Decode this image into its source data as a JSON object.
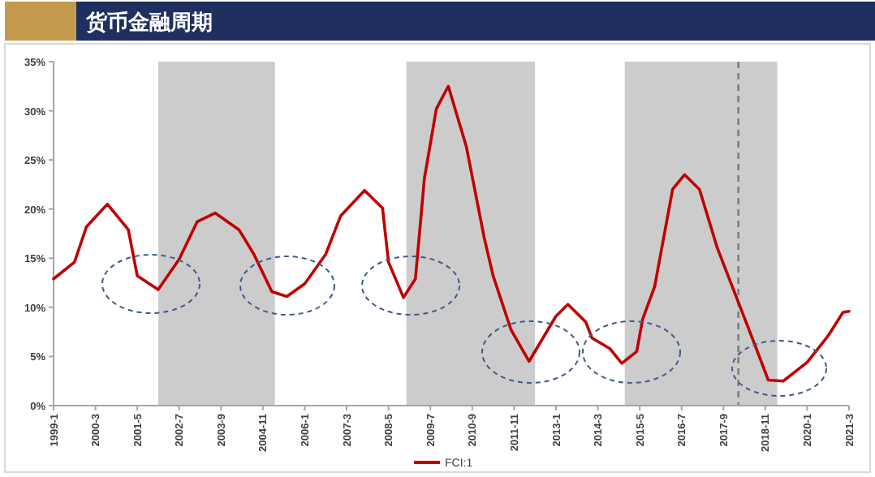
{
  "chart_data": {
    "type": "line",
    "title": "货币金融周期",
    "x": [
      "1999-01",
      "1999-08",
      "1999-12",
      "2000-07",
      "2001-02",
      "2001-05",
      "2001-12",
      "2002-07",
      "2003-01",
      "2003-07",
      "2004-03",
      "2004-08",
      "2005-02",
      "2005-07",
      "2006-01",
      "2006-08",
      "2007-01",
      "2007-09",
      "2008-03",
      "2008-05",
      "2008-10",
      "2009-02",
      "2009-05",
      "2009-09",
      "2010-01",
      "2010-07",
      "2011-01",
      "2011-04",
      "2011-10",
      "2012-04",
      "2013-01",
      "2013-05",
      "2013-11",
      "2014-01",
      "2014-07",
      "2014-11",
      "2015-04",
      "2015-06",
      "2015-10",
      "2016-04",
      "2016-08",
      "2017-01",
      "2017-07",
      "2018-01",
      "2018-07",
      "2018-12",
      "2019-05",
      "2020-01",
      "2020-08",
      "2021-01",
      "2021-03"
    ],
    "series": [
      {
        "name": "FCI:1",
        "color": "#c00000",
        "values": [
          12.9,
          14.6,
          18.2,
          20.5,
          17.9,
          13.2,
          11.8,
          14.9,
          18.7,
          19.6,
          17.9,
          15.4,
          11.6,
          11.1,
          12.4,
          15.4,
          19.3,
          21.9,
          20.1,
          14.6,
          11.0,
          12.9,
          23.1,
          30.2,
          32.5,
          26.4,
          17.1,
          13.2,
          7.7,
          4.5,
          9.1,
          10.3,
          8.5,
          6.9,
          5.8,
          4.3,
          5.5,
          8.8,
          12.1,
          22.0,
          23.5,
          22.0,
          16.0,
          11.3,
          6.6,
          2.6,
          2.5,
          4.4,
          7.1,
          9.5,
          9.6
        ]
      }
    ],
    "xlim": [
      "1999-01",
      "2021-03"
    ],
    "xticks": [
      {
        "value": "1999-01",
        "label": "1999-1"
      },
      {
        "value": "2000-03",
        "label": "2000-3"
      },
      {
        "value": "2001-05",
        "label": "2001-5"
      },
      {
        "value": "2002-07",
        "label": "2002-7"
      },
      {
        "value": "2003-09",
        "label": "2003-9"
      },
      {
        "value": "2004-11",
        "label": "2004-11"
      },
      {
        "value": "2006-01",
        "label": "2006-1"
      },
      {
        "value": "2007-03",
        "label": "2007-3"
      },
      {
        "value": "2008-05",
        "label": "2008-5"
      },
      {
        "value": "2009-07",
        "label": "2009-7"
      },
      {
        "value": "2010-09",
        "label": "2010-9"
      },
      {
        "value": "2011-11",
        "label": "2011-11"
      },
      {
        "value": "2013-01",
        "label": "2013-1"
      },
      {
        "value": "2014-03",
        "label": "2014-3"
      },
      {
        "value": "2015-05",
        "label": "2015-5"
      },
      {
        "value": "2016-07",
        "label": "2016-7"
      },
      {
        "value": "2017-09",
        "label": "2017-9"
      },
      {
        "value": "2018-11",
        "label": "2018-11"
      },
      {
        "value": "2020-01",
        "label": "2020-1"
      },
      {
        "value": "2021-03",
        "label": "2021-3"
      }
    ],
    "ylim": [
      0,
      35
    ],
    "yticks": [
      {
        "value": 0,
        "label": "0%"
      },
      {
        "value": 5,
        "label": "5%"
      },
      {
        "value": 10,
        "label": "10%"
      },
      {
        "value": 15,
        "label": "15%"
      },
      {
        "value": 20,
        "label": "20%"
      },
      {
        "value": 25,
        "label": "25%"
      },
      {
        "value": 30,
        "label": "30%"
      },
      {
        "value": 35,
        "label": "35%"
      }
    ],
    "bands": [
      {
        "axis": "x",
        "from": "2001-12",
        "to": "2005-03",
        "color": "#cccccc"
      },
      {
        "axis": "x",
        "from": "2008-11",
        "to": "2012-06",
        "color": "#cccccc"
      },
      {
        "axis": "x",
        "from": "2014-12",
        "to": "2019-03",
        "color": "#cccccc"
      }
    ],
    "ref_lines": [
      {
        "axis": "x",
        "value": "2018-02",
        "color": "#7f7f7f",
        "line_style": "dashed"
      }
    ],
    "legend": "bottom",
    "grid": false
  }
}
